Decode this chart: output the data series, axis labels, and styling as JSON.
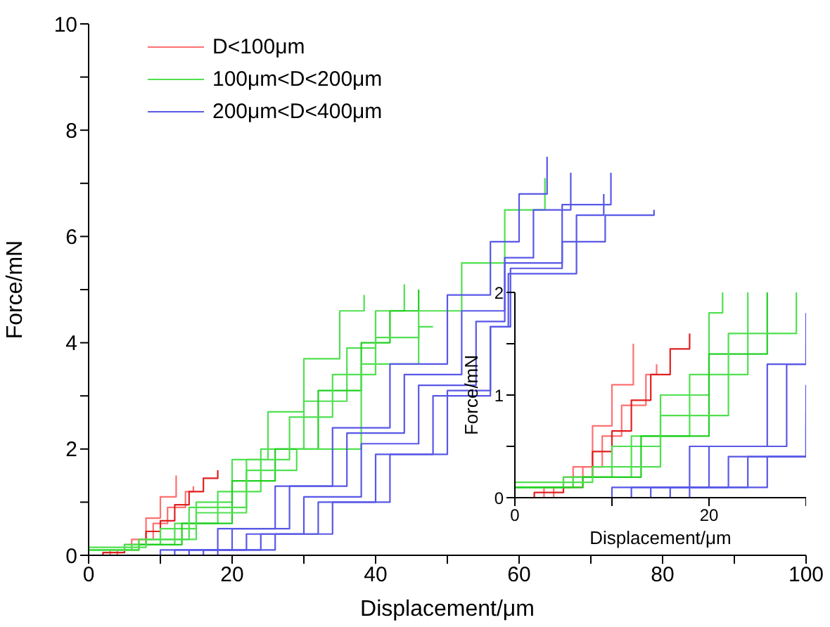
{
  "chart_data": [
    {
      "type": "step",
      "xlabel": "Displacement/μm",
      "ylabel": "Force/mN",
      "xlim": [
        0,
        100
      ],
      "ylim": [
        0,
        10
      ],
      "xticks": [
        0,
        {
          "value": 10,
          "label": null
        },
        20,
        {
          "value": 30,
          "label": null
        },
        40,
        {
          "value": 50,
          "label": null
        },
        60,
        {
          "value": 70,
          "label": null
        },
        80,
        {
          "value": 90,
          "label": null
        },
        100
      ],
      "yticks": [
        0,
        {
          "value": 1,
          "label": null
        },
        2,
        {
          "value": 3,
          "label": null
        },
        4,
        {
          "value": 5,
          "label": null
        },
        6,
        {
          "value": 7,
          "label": null
        },
        8,
        {
          "value": 9,
          "label": null
        },
        10
      ],
      "legend": "top left",
      "series": [
        {
          "name": "D<100μm",
          "color": "#ff7070",
          "x": [
            0,
            3,
            6,
            8,
            10,
            12.2
          ],
          "values": [
            0,
            0.1,
            0.3,
            0.7,
            1.1,
            1.5
          ]
        },
        {
          "color": "#ff7070",
          "x": [
            0,
            4,
            7,
            9,
            11,
            13.5,
            14.6
          ],
          "values": [
            0,
            0.1,
            0.3,
            0.6,
            0.9,
            1.2,
            1.3
          ]
        },
        {
          "color": "#e02020",
          "x": [
            0,
            2,
            5,
            8,
            10,
            12,
            14,
            16,
            18
          ],
          "values": [
            0,
            0.05,
            0.2,
            0.45,
            0.65,
            0.95,
            1.2,
            1.45,
            1.6
          ]
        },
        {
          "name": "100μm<D<200μm",
          "color": "#50e050",
          "x": [
            0,
            5,
            10,
            15,
            20,
            25,
            30,
            35,
            38.4
          ],
          "values": [
            0.1,
            0.2,
            0.5,
            1.0,
            1.8,
            2.7,
            3.7,
            4.6,
            4.9
          ]
        },
        {
          "color": "#50e050",
          "x": [
            0,
            6,
            12,
            18,
            24,
            30,
            36,
            40,
            44
          ],
          "values": [
            0.1,
            0.2,
            0.6,
            1.2,
            2.0,
            2.9,
            3.9,
            4.6,
            5.1
          ]
        },
        {
          "color": "#20d020",
          "x": [
            0,
            7,
            13,
            20,
            26,
            32,
            38,
            42,
            46
          ],
          "values": [
            0.1,
            0.2,
            0.6,
            1.4,
            2.0,
            3.1,
            4.0,
            4.6,
            5.0
          ]
        },
        {
          "color": "#50e050",
          "x": [
            0,
            8,
            15,
            22,
            29,
            38,
            46,
            52,
            58,
            63.6
          ],
          "values": [
            0.15,
            0.3,
            0.8,
            1.6,
            2.0,
            3.6,
            4.6,
            5.5,
            6.5,
            7.1
          ]
        },
        {
          "color": "#50e050",
          "x": [
            0,
            7,
            14,
            22,
            28,
            34,
            40,
            46,
            48
          ],
          "values": [
            0.1,
            0.3,
            0.9,
            1.8,
            2.6,
            3.4,
            4.1,
            4.3,
            4.3
          ]
        },
        {
          "name": "200μm<D<400μm",
          "color": "#5858e8",
          "x": [
            0,
            10,
            18,
            26,
            34,
            42,
            50,
            56,
            60,
            63.9
          ],
          "values": [
            0,
            0.1,
            0.5,
            1.3,
            2.4,
            3.6,
            4.9,
            5.9,
            6.8,
            7.5
          ]
        },
        {
          "color": "#5858e8",
          "x": [
            0,
            12,
            20,
            28,
            36,
            44,
            52,
            58,
            62,
            67.2
          ],
          "values": [
            0,
            0.1,
            0.5,
            1.3,
            2.3,
            3.4,
            4.6,
            5.6,
            6.5,
            7.2
          ]
        },
        {
          "color": "#5858e8",
          "x": [
            0,
            14,
            22,
            30,
            38,
            46,
            54,
            58,
            66,
            72.8
          ],
          "values": [
            0,
            0.1,
            0.4,
            1.1,
            2.1,
            3.2,
            4.4,
            5.5,
            6.6,
            7.2
          ]
        },
        {
          "color": "#5858e8",
          "x": [
            0,
            16,
            24,
            32,
            40,
            48,
            56,
            58.5,
            68,
            71.8
          ],
          "values": [
            0,
            0.1,
            0.4,
            1.0,
            1.9,
            3.0,
            4.3,
            5.3,
            6.4,
            6.8
          ]
        },
        {
          "color": "#5858e8",
          "x": [
            0,
            18,
            26,
            34,
            42,
            50,
            56,
            58.8,
            66,
            72,
            78.8
          ],
          "values": [
            0,
            0.1,
            0.4,
            1.0,
            1.9,
            3.1,
            4.3,
            5.4,
            5.9,
            6.4,
            6.5
          ]
        }
      ]
    },
    {
      "type": "step",
      "xlabel": "Displacement/μm",
      "ylabel": "Force/mN",
      "xlim": [
        0,
        30
      ],
      "ylim": [
        0,
        2
      ],
      "xticks": [
        0,
        {
          "value": 10,
          "label": null
        },
        20,
        {
          "value": 30,
          "label": null
        }
      ],
      "yticks": [
        0,
        {
          "value": 0.5,
          "label": null
        },
        1,
        {
          "value": 1.5,
          "label": null
        },
        2
      ],
      "series": [
        {
          "color": "#ff7070",
          "x": [
            0,
            3,
            6,
            8,
            10,
            12.2
          ],
          "values": [
            0,
            0.1,
            0.3,
            0.7,
            1.1,
            1.5
          ]
        },
        {
          "color": "#ff7070",
          "x": [
            0,
            4,
            7,
            9,
            11,
            13.5,
            14.6
          ],
          "values": [
            0,
            0.1,
            0.3,
            0.6,
            0.9,
            1.2,
            1.3
          ]
        },
        {
          "color": "#e02020",
          "x": [
            0,
            2,
            5,
            8,
            10,
            12,
            14,
            16,
            18
          ],
          "values": [
            0,
            0.05,
            0.2,
            0.45,
            0.65,
            0.95,
            1.2,
            1.45,
            1.6
          ]
        },
        {
          "color": "#50e050",
          "x": [
            0,
            5,
            10,
            15,
            20,
            21.4
          ],
          "values": [
            0.1,
            0.2,
            0.5,
            1.0,
            1.8,
            2.0
          ]
        },
        {
          "color": "#50e050",
          "x": [
            0,
            6,
            12,
            18,
            24
          ],
          "values": [
            0.1,
            0.2,
            0.6,
            1.2,
            2.0
          ]
        },
        {
          "color": "#20d020",
          "x": [
            0,
            7,
            13,
            20,
            26
          ],
          "values": [
            0.1,
            0.2,
            0.6,
            1.4,
            2.0
          ]
        },
        {
          "color": "#50e050",
          "x": [
            0,
            8,
            15,
            22,
            29
          ],
          "values": [
            0.15,
            0.3,
            0.8,
            1.6,
            2.0
          ]
        },
        {
          "color": "#5858e8",
          "x": [
            0,
            10,
            18,
            26,
            30
          ],
          "values": [
            0,
            0.1,
            0.5,
            1.3,
            1.8
          ]
        },
        {
          "color": "#5858e8",
          "x": [
            0,
            12,
            20,
            28,
            30
          ],
          "values": [
            0,
            0.1,
            0.5,
            1.3,
            1.5
          ]
        },
        {
          "color": "#5858e8",
          "x": [
            0,
            14,
            22,
            30
          ],
          "values": [
            0,
            0.1,
            0.4,
            1.1
          ]
        },
        {
          "color": "#5858e8",
          "x": [
            0,
            16,
            24,
            30
          ],
          "values": [
            0,
            0.1,
            0.4,
            0.85
          ]
        },
        {
          "color": "#5858e8",
          "x": [
            0,
            18,
            26,
            30
          ],
          "values": [
            0,
            0.1,
            0.4,
            0.7
          ]
        }
      ]
    }
  ]
}
